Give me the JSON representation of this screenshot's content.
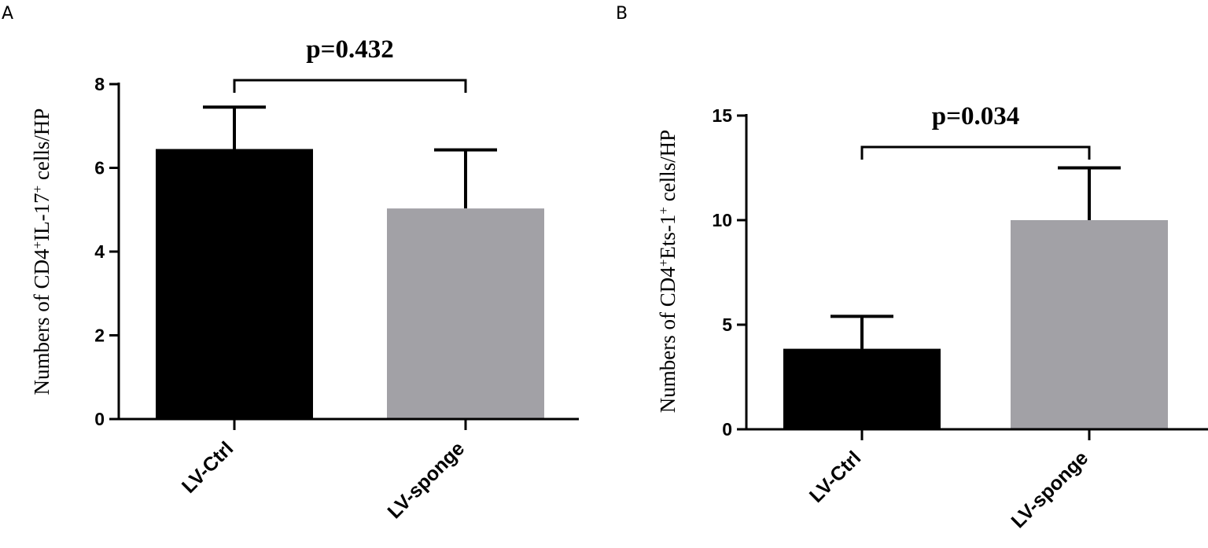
{
  "chart_data": [
    {
      "panel": "A",
      "type": "bar",
      "categories": [
        "LV-Ctrl",
        "LV-sponge"
      ],
      "series": [
        {
          "values": [
            6.45,
            5.03
          ],
          "errors": [
            1.0,
            1.4
          ],
          "colors": [
            "#000000",
            "#a2a1a6"
          ]
        }
      ],
      "ylabel": {
        "prefix": "Numbers of CD4",
        "sup1": "+",
        "middle": "IL-17",
        "sup2": "+",
        "suffix": " cells/HP"
      },
      "ylim": [
        0,
        8
      ],
      "yticks": [
        0,
        2,
        4,
        6,
        8
      ],
      "annotation": "p=0.432",
      "grid": false
    },
    {
      "panel": "B",
      "type": "bar",
      "categories": [
        "LV-Ctrl",
        "LV-sponge"
      ],
      "series": [
        {
          "values": [
            3.85,
            10.0
          ],
          "errors": [
            1.55,
            2.5
          ],
          "colors": [
            "#000000",
            "#a2a1a6"
          ]
        }
      ],
      "ylabel": {
        "prefix": "Numbers of CD4",
        "sup1": "+",
        "middle": "Ets-1",
        "sup2": "+",
        "suffix": " cells/HP"
      },
      "ylim": [
        0,
        15
      ],
      "yticks": [
        0,
        5,
        10,
        15
      ],
      "annotation": "p=0.034",
      "grid": false
    }
  ]
}
